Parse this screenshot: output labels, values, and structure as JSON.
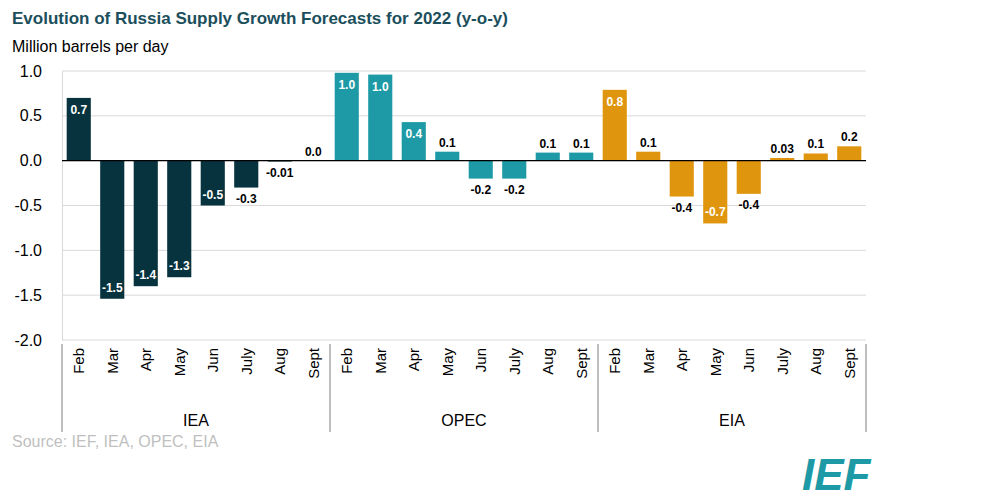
{
  "chart_data": {
    "type": "bar",
    "title": "Evolution of Russia Supply Growth Forecasts for 2022 (y-o-y)",
    "subtitle": "Million barrels per day",
    "source": "Source: IEF, IEA, OPEC, EIA",
    "logo": "IEF",
    "categories": [
      "Feb",
      "Mar",
      "Apr",
      "May",
      "Jun",
      "July",
      "Aug",
      "Sept"
    ],
    "series": [
      {
        "name": "IEA",
        "color": "#07333f",
        "values": [
          0.7,
          -1.54,
          -1.4,
          -1.3,
          -0.5,
          -0.3,
          -0.01,
          0
        ],
        "value_labels": [
          "0.7",
          "-1.5",
          "-1.4",
          "-1.3",
          "-0.5",
          "-0.3",
          "-0.01",
          "0.0"
        ]
      },
      {
        "name": "OPEC",
        "color": "#1d9aa6",
        "values": [
          0.98,
          0.96,
          0.43,
          0.1,
          -0.2,
          -0.2,
          0.09,
          0.09
        ],
        "value_labels": [
          "1.0",
          "1.0",
          "0.4",
          "0.1",
          "-0.2",
          "-0.2",
          "0.1",
          "0.1"
        ]
      },
      {
        "name": "EIA",
        "color": "#e0950e",
        "values": [
          0.79,
          0.1,
          -0.4,
          -0.7,
          -0.37,
          0.03,
          0.08,
          0.16
        ],
        "value_labels": [
          "0.8",
          "0.1",
          "-0.4",
          "-0.7",
          "-0.4",
          "0.03",
          "0.1",
          "0.2"
        ]
      }
    ],
    "ylim": [
      -2,
      1
    ],
    "yticks": [
      {
        "value": 1,
        "label": "1.0"
      },
      0.5,
      {
        "value": 0,
        "label": "0.0"
      },
      -0.5,
      {
        "value": -1,
        "label": "-1.0"
      },
      -1.5,
      {
        "value": -2,
        "label": "-2.0"
      }
    ],
    "grid": true,
    "data_labels": true
  }
}
